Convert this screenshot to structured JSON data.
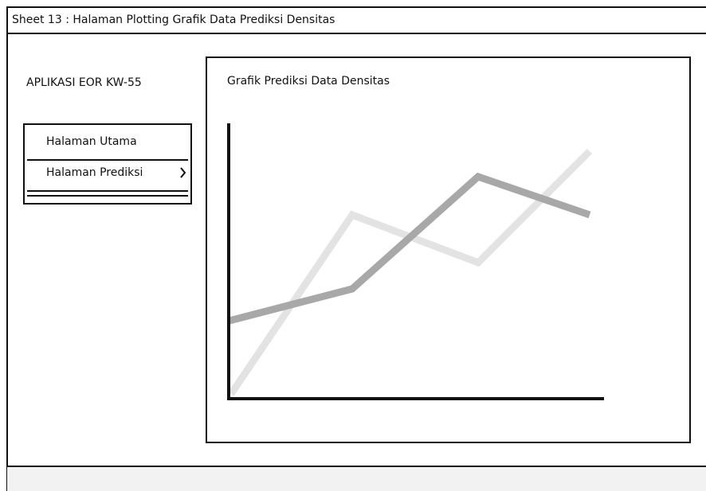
{
  "window": {
    "title": "Sheet 13 : Halaman Plotting Grafik Data Prediksi Densitas"
  },
  "app": {
    "title": "APLIKASI EOR KW-55"
  },
  "menu": {
    "items": [
      "Halaman Utama",
      "Halaman Prediksi"
    ]
  },
  "panel": {
    "title": "Grafik Prediksi Data Densitas"
  }
}
